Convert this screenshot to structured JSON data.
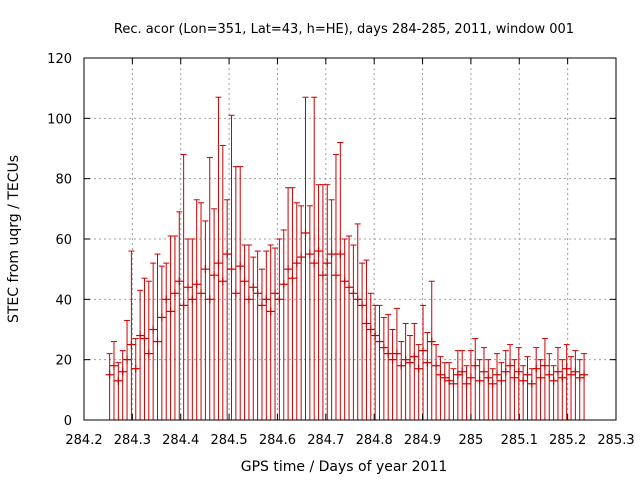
{
  "chart_data": {
    "type": "scatter",
    "title": "Rec. acor (Lon=351, Lat=43, h=HE), days 284-285, 2011, window 001",
    "xlabel": "GPS time / Days of year 2011",
    "ylabel": "STEC from uqrg / TECUs",
    "xlim": [
      284.2,
      285.3
    ],
    "ylim": [
      0,
      120
    ],
    "xticks": [
      284.2,
      284.3,
      284.4,
      284.5,
      284.6,
      284.7,
      284.8,
      284.9,
      285.0,
      285.1,
      285.2,
      285.3
    ],
    "xtick_labels": [
      "284.2",
      "284.3",
      "284.4",
      "284.5",
      "284.6",
      "284.7",
      "284.8",
      "284.9",
      "285",
      "285.1",
      "285.2",
      "285.3"
    ],
    "yticks": [
      0,
      20,
      40,
      60,
      80,
      100,
      120
    ],
    "ytick_labels": [
      "0",
      "20",
      "40",
      "60",
      "80",
      "100",
      "120"
    ],
    "grid": true,
    "series": [
      {
        "name": "STEC",
        "color": "#cc0000",
        "marker": "plus-with-errorbar",
        "points": [
          {
            "x": 284.253,
            "y": 15,
            "err": 7
          },
          {
            "x": 284.262,
            "y": 18,
            "err": 8
          },
          {
            "x": 284.271,
            "y": 13,
            "err": 6
          },
          {
            "x": 284.28,
            "y": 16,
            "err": 7
          },
          {
            "x": 284.289,
            "y": 20,
            "err": 13
          },
          {
            "x": 284.298,
            "y": 25,
            "err": 31
          },
          {
            "x": 284.307,
            "y": 17,
            "err": 10
          },
          {
            "x": 284.316,
            "y": 28,
            "err": 15
          },
          {
            "x": 284.325,
            "y": 27,
            "err": 20
          },
          {
            "x": 284.334,
            "y": 22,
            "err": 24
          },
          {
            "x": 284.343,
            "y": 30,
            "err": 22
          },
          {
            "x": 284.352,
            "y": 26,
            "err": 29
          },
          {
            "x": 284.361,
            "y": 34,
            "err": 17
          },
          {
            "x": 284.37,
            "y": 40,
            "err": 12
          },
          {
            "x": 284.379,
            "y": 36,
            "err": 25
          },
          {
            "x": 284.388,
            "y": 42,
            "err": 19
          },
          {
            "x": 284.397,
            "y": 46,
            "err": 23
          },
          {
            "x": 284.406,
            "y": 38,
            "err": 50
          },
          {
            "x": 284.415,
            "y": 44,
            "err": 16
          },
          {
            "x": 284.424,
            "y": 40,
            "err": 20
          },
          {
            "x": 284.433,
            "y": 45,
            "err": 28
          },
          {
            "x": 284.442,
            "y": 42,
            "err": 30
          },
          {
            "x": 284.451,
            "y": 50,
            "err": 16
          },
          {
            "x": 284.46,
            "y": 40,
            "err": 47
          },
          {
            "x": 284.469,
            "y": 48,
            "err": 22
          },
          {
            "x": 284.478,
            "y": 52,
            "err": 55
          },
          {
            "x": 284.487,
            "y": 46,
            "err": 45
          },
          {
            "x": 284.496,
            "y": 55,
            "err": 18
          },
          {
            "x": 284.505,
            "y": 50,
            "err": 51
          },
          {
            "x": 284.514,
            "y": 42,
            "err": 42
          },
          {
            "x": 284.523,
            "y": 51,
            "err": 33
          },
          {
            "x": 284.532,
            "y": 46,
            "err": 12
          },
          {
            "x": 284.541,
            "y": 40,
            "err": 18
          },
          {
            "x": 284.55,
            "y": 44,
            "err": 10
          },
          {
            "x": 284.559,
            "y": 42,
            "err": 14
          },
          {
            "x": 284.568,
            "y": 38,
            "err": 12
          },
          {
            "x": 284.577,
            "y": 40,
            "err": 16
          },
          {
            "x": 284.586,
            "y": 36,
            "err": 22
          },
          {
            "x": 284.595,
            "y": 42,
            "err": 15
          },
          {
            "x": 284.604,
            "y": 40,
            "err": 20
          },
          {
            "x": 284.613,
            "y": 45,
            "err": 18
          },
          {
            "x": 284.622,
            "y": 50,
            "err": 27
          },
          {
            "x": 284.631,
            "y": 47,
            "err": 30
          },
          {
            "x": 284.64,
            "y": 52,
            "err": 20
          },
          {
            "x": 284.649,
            "y": 54,
            "err": 17
          },
          {
            "x": 284.658,
            "y": 62,
            "err": 45
          },
          {
            "x": 284.667,
            "y": 55,
            "err": 16
          },
          {
            "x": 284.676,
            "y": 52,
            "err": 55
          },
          {
            "x": 284.685,
            "y": 56,
            "err": 22
          },
          {
            "x": 284.694,
            "y": 48,
            "err": 30
          },
          {
            "x": 284.703,
            "y": 52,
            "err": 26
          },
          {
            "x": 284.712,
            "y": 55,
            "err": 18
          },
          {
            "x": 284.721,
            "y": 48,
            "err": 40
          },
          {
            "x": 284.73,
            "y": 55,
            "err": 37
          },
          {
            "x": 284.739,
            "y": 46,
            "err": 14
          },
          {
            "x": 284.748,
            "y": 44,
            "err": 17
          },
          {
            "x": 284.757,
            "y": 42,
            "err": 16
          },
          {
            "x": 284.766,
            "y": 40,
            "err": 25
          },
          {
            "x": 284.775,
            "y": 38,
            "err": 14
          },
          {
            "x": 284.784,
            "y": 32,
            "err": 21
          },
          {
            "x": 284.793,
            "y": 30,
            "err": 12
          },
          {
            "x": 284.802,
            "y": 28,
            "err": 10
          },
          {
            "x": 284.811,
            "y": 26,
            "err": 12
          },
          {
            "x": 284.82,
            "y": 24,
            "err": 10
          },
          {
            "x": 284.829,
            "y": 22,
            "err": 13
          },
          {
            "x": 284.838,
            "y": 20,
            "err": 10
          },
          {
            "x": 284.847,
            "y": 22,
            "err": 15
          },
          {
            "x": 284.856,
            "y": 18,
            "err": 8
          },
          {
            "x": 284.865,
            "y": 20,
            "err": 12
          },
          {
            "x": 284.874,
            "y": 19,
            "err": 9
          },
          {
            "x": 284.883,
            "y": 21,
            "err": 11
          },
          {
            "x": 284.892,
            "y": 17,
            "err": 8
          },
          {
            "x": 284.901,
            "y": 23,
            "err": 15
          },
          {
            "x": 284.91,
            "y": 19,
            "err": 10
          },
          {
            "x": 284.919,
            "y": 26,
            "err": 20
          },
          {
            "x": 284.928,
            "y": 18,
            "err": 7
          },
          {
            "x": 284.937,
            "y": 15,
            "err": 6
          },
          {
            "x": 284.946,
            "y": 14,
            "err": 5
          },
          {
            "x": 284.955,
            "y": 13,
            "err": 6
          },
          {
            "x": 284.964,
            "y": 12,
            "err": 5
          },
          {
            "x": 284.973,
            "y": 15,
            "err": 8
          },
          {
            "x": 284.982,
            "y": 16,
            "err": 7
          },
          {
            "x": 284.991,
            "y": 12,
            "err": 6
          },
          {
            "x": 285.0,
            "y": 14,
            "err": 9
          },
          {
            "x": 285.009,
            "y": 18,
            "err": 9
          },
          {
            "x": 285.018,
            "y": 13,
            "err": 7
          },
          {
            "x": 285.027,
            "y": 16,
            "err": 8
          },
          {
            "x": 285.036,
            "y": 14,
            "err": 6
          },
          {
            "x": 285.045,
            "y": 12,
            "err": 5
          },
          {
            "x": 285.054,
            "y": 15,
            "err": 7
          },
          {
            "x": 285.063,
            "y": 13,
            "err": 6
          },
          {
            "x": 285.072,
            "y": 16,
            "err": 7
          },
          {
            "x": 285.081,
            "y": 18,
            "err": 7
          },
          {
            "x": 285.09,
            "y": 14,
            "err": 6
          },
          {
            "x": 285.099,
            "y": 16,
            "err": 8
          },
          {
            "x": 285.108,
            "y": 13,
            "err": 5
          },
          {
            "x": 285.117,
            "y": 15,
            "err": 6
          },
          {
            "x": 285.126,
            "y": 12,
            "err": 5
          },
          {
            "x": 285.135,
            "y": 17,
            "err": 7
          },
          {
            "x": 285.144,
            "y": 14,
            "err": 6
          },
          {
            "x": 285.153,
            "y": 18,
            "err": 9
          },
          {
            "x": 285.162,
            "y": 15,
            "err": 7
          },
          {
            "x": 285.171,
            "y": 13,
            "err": 5
          },
          {
            "x": 285.18,
            "y": 16,
            "err": 8
          },
          {
            "x": 285.189,
            "y": 14,
            "err": 6
          },
          {
            "x": 285.198,
            "y": 17,
            "err": 8
          },
          {
            "x": 285.207,
            "y": 15,
            "err": 6
          },
          {
            "x": 285.216,
            "y": 16,
            "err": 7
          },
          {
            "x": 285.225,
            "y": 14,
            "err": 6
          },
          {
            "x": 285.234,
            "y": 15,
            "err": 7
          }
        ]
      }
    ]
  }
}
